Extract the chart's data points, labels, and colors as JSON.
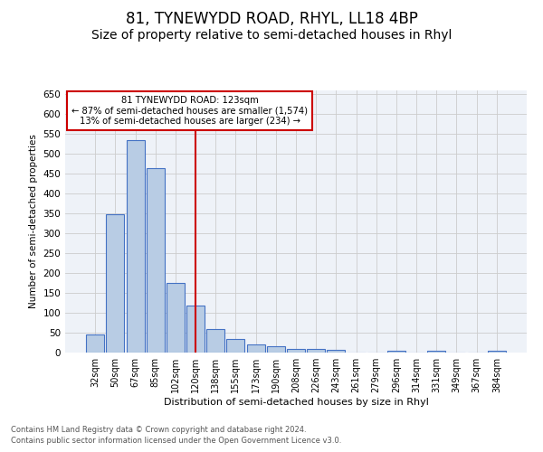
{
  "title": "81, TYNEWYDD ROAD, RHYL, LL18 4BP",
  "subtitle": "Size of property relative to semi-detached houses in Rhyl",
  "xlabel": "Distribution of semi-detached houses by size in Rhyl",
  "ylabel": "Number of semi-detached properties",
  "footnote1": "Contains HM Land Registry data © Crown copyright and database right 2024.",
  "footnote2": "Contains public sector information licensed under the Open Government Licence v3.0.",
  "bar_labels": [
    "32sqm",
    "50sqm",
    "67sqm",
    "85sqm",
    "102sqm",
    "120sqm",
    "138sqm",
    "155sqm",
    "173sqm",
    "190sqm",
    "208sqm",
    "226sqm",
    "243sqm",
    "261sqm",
    "279sqm",
    "296sqm",
    "314sqm",
    "331sqm",
    "349sqm",
    "367sqm",
    "384sqm"
  ],
  "bar_values": [
    46,
    348,
    535,
    464,
    175,
    118,
    59,
    35,
    20,
    15,
    10,
    9,
    7,
    0,
    0,
    5,
    0,
    5,
    0,
    0,
    5
  ],
  "bar_color": "#b8cce4",
  "bar_edge_color": "#4472c4",
  "vline_x_index": 5,
  "vline_color": "#cc0000",
  "annotation_text": "81 TYNEWYDD ROAD: 123sqm\n← 87% of semi-detached houses are smaller (1,574)\n13% of semi-detached houses are larger (234) →",
  "annotation_box_color": "#cc0000",
  "annotation_text_color": "#000000",
  "ylim": [
    0,
    660
  ],
  "yticks": [
    0,
    50,
    100,
    150,
    200,
    250,
    300,
    350,
    400,
    450,
    500,
    550,
    600,
    650
  ],
  "grid_color": "#cccccc",
  "background_color": "#eef2f8",
  "title_fontsize": 12,
  "subtitle_fontsize": 10,
  "footnote_fontsize": 6.0
}
